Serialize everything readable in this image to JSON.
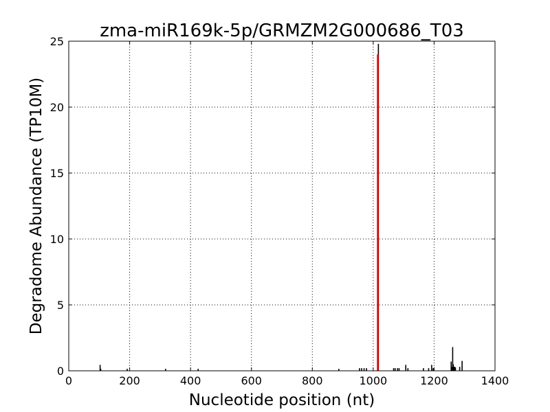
{
  "chart_data": {
    "type": "bar",
    "title": "zma-miR169k-5p/GRMZM2G000686_T03",
    "xlabel": "Nucleotide position (nt)",
    "ylabel": "Degradome Abundance (TP10M)",
    "xlim": [
      0,
      1400
    ],
    "ylim": [
      0,
      25
    ],
    "xticks": [
      0,
      200,
      400,
      600,
      800,
      1000,
      1200,
      1400
    ],
    "yticks": [
      0,
      5,
      10,
      15,
      20,
      25
    ],
    "grid": true,
    "colors": {
      "background_bars": "#000000",
      "target_bar": "#ff0000",
      "grid": "#000000"
    },
    "series": [
      {
        "role": "background",
        "points": [
          {
            "x": 103,
            "y": 0.45
          },
          {
            "x": 105,
            "y": 0.15
          },
          {
            "x": 192,
            "y": 0.15
          },
          {
            "x": 318,
            "y": 0.15
          },
          {
            "x": 425,
            "y": 0.15
          },
          {
            "x": 887,
            "y": 0.15
          },
          {
            "x": 955,
            "y": 0.2
          },
          {
            "x": 962,
            "y": 0.2
          },
          {
            "x": 970,
            "y": 0.2
          },
          {
            "x": 978,
            "y": 0.2
          },
          {
            "x": 1017,
            "y": 24.8
          },
          {
            "x": 1067,
            "y": 0.2
          },
          {
            "x": 1072,
            "y": 0.2
          },
          {
            "x": 1080,
            "y": 0.2
          },
          {
            "x": 1085,
            "y": 0.2
          },
          {
            "x": 1107,
            "y": 0.45
          },
          {
            "x": 1114,
            "y": 0.2
          },
          {
            "x": 1165,
            "y": 0.2
          },
          {
            "x": 1182,
            "y": 0.2
          },
          {
            "x": 1192,
            "y": 0.45
          },
          {
            "x": 1197,
            "y": 0.2
          },
          {
            "x": 1256,
            "y": 0.7
          },
          {
            "x": 1259,
            "y": 0.3
          },
          {
            "x": 1261,
            "y": 1.8
          },
          {
            "x": 1263,
            "y": 0.5
          },
          {
            "x": 1266,
            "y": 0.3
          },
          {
            "x": 1268,
            "y": 0.3
          },
          {
            "x": 1270,
            "y": 0.25
          },
          {
            "x": 1284,
            "y": 0.3
          },
          {
            "x": 1292,
            "y": 0.75
          }
        ]
      },
      {
        "role": "target",
        "points": [
          {
            "x": 1015,
            "y": 24.0
          }
        ]
      }
    ]
  }
}
